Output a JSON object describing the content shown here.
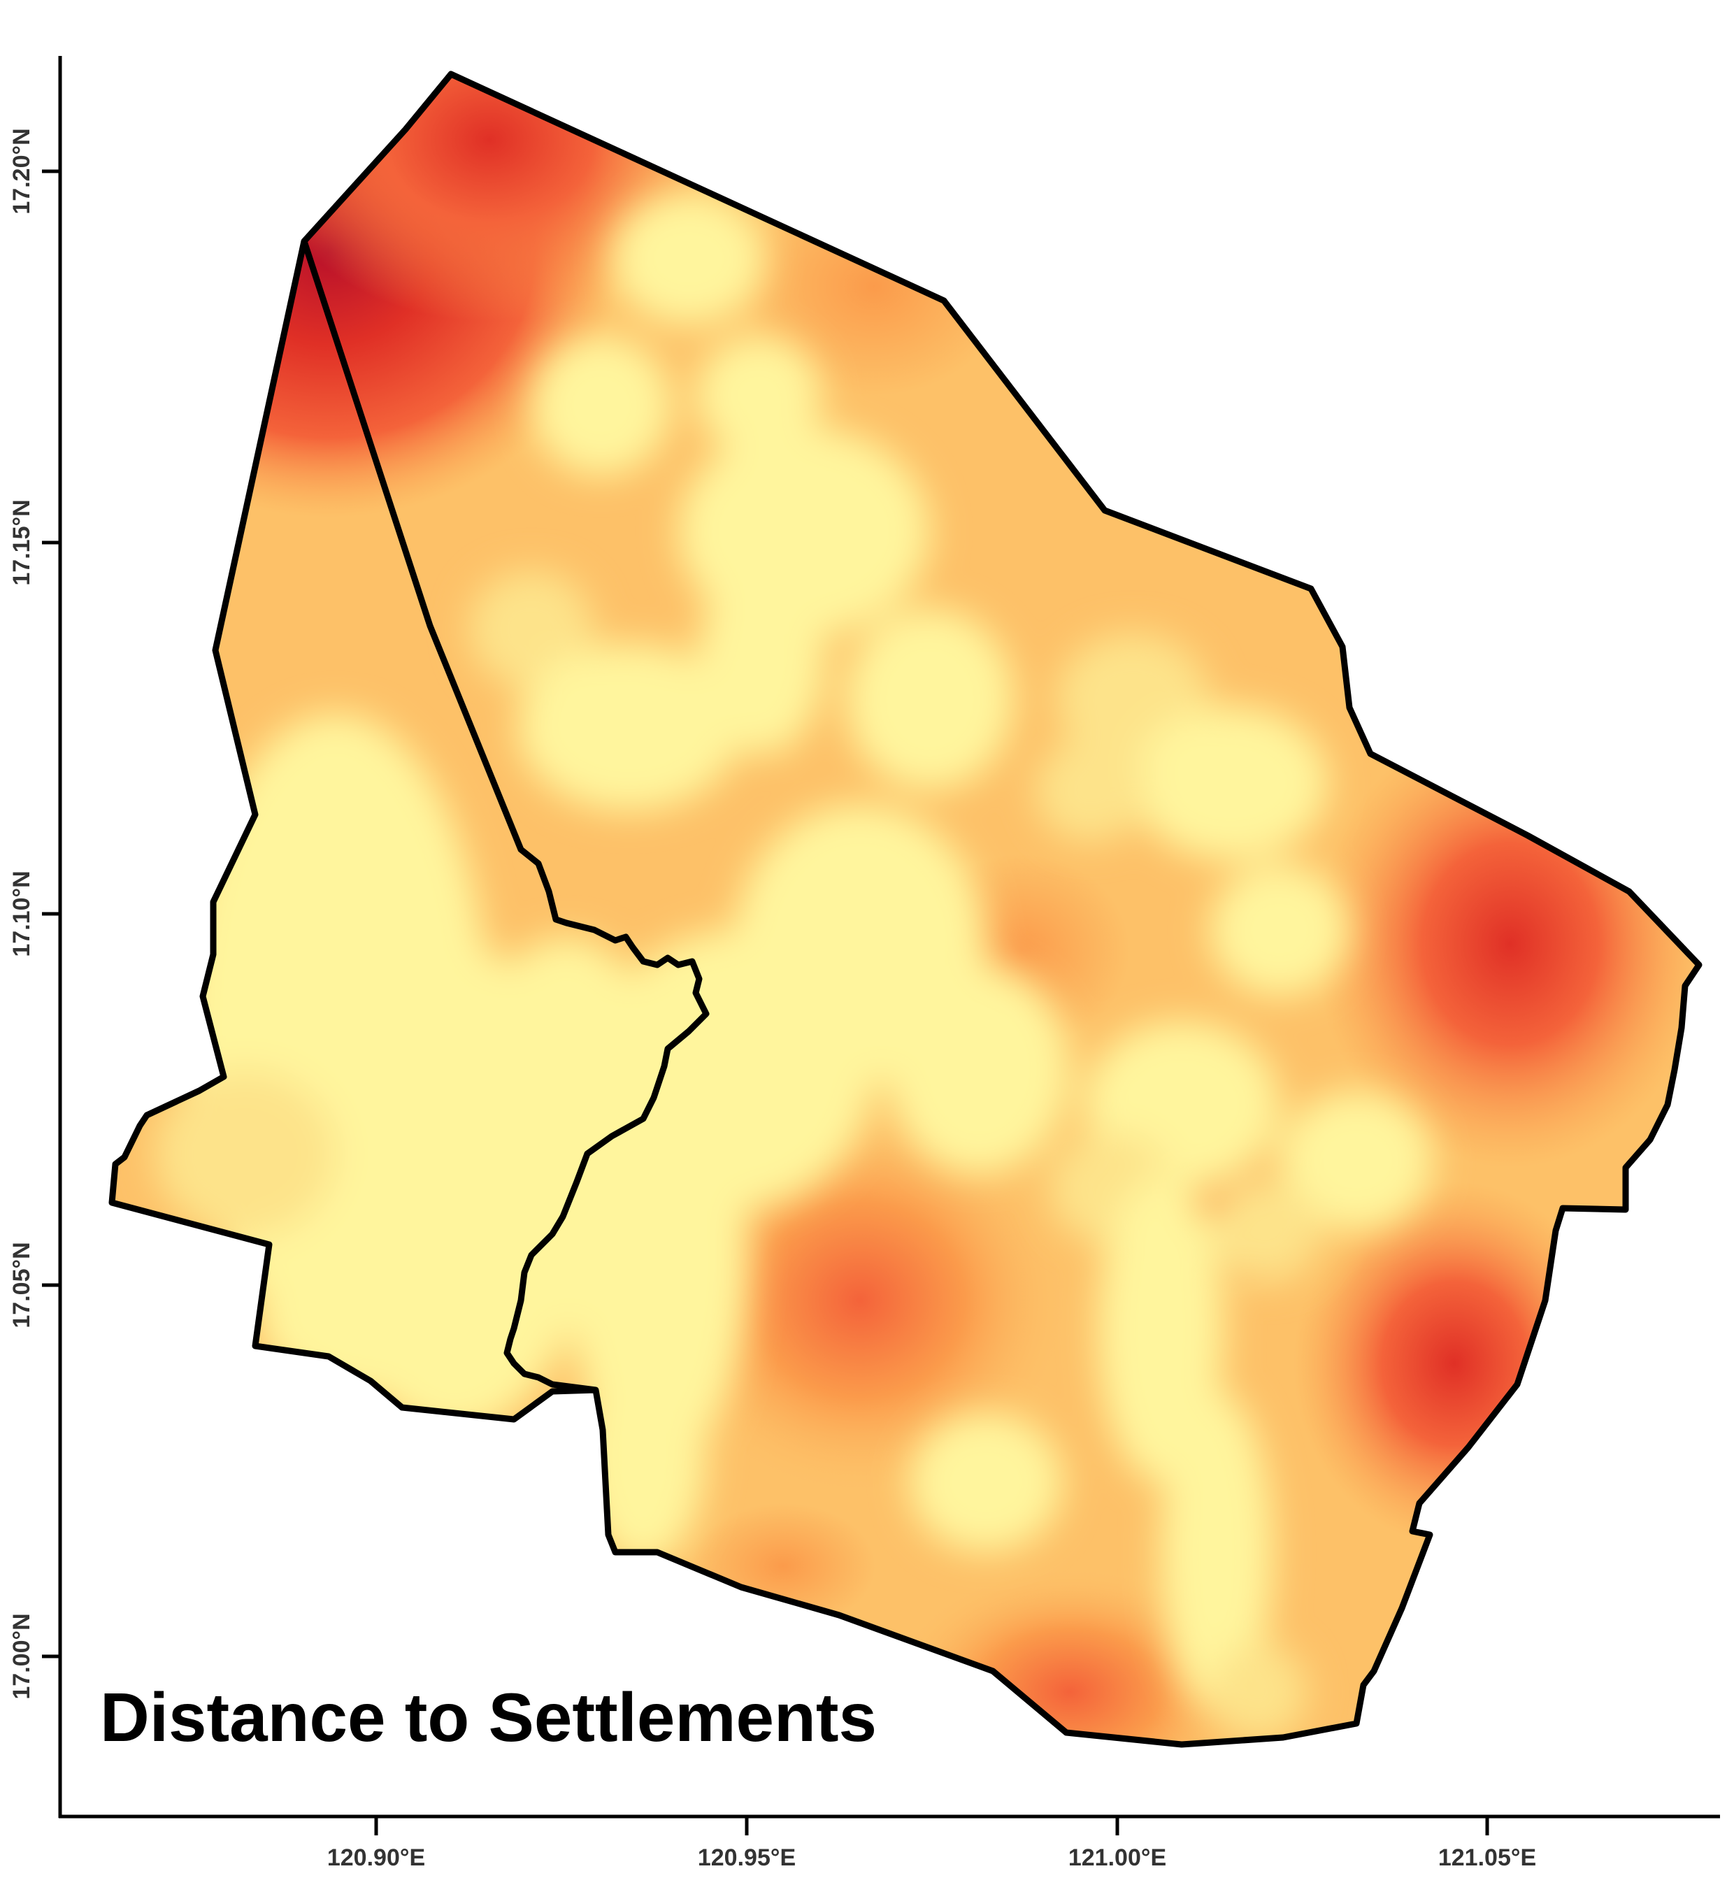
{
  "map": {
    "title": "Distance to Settlements",
    "x_ticks": [
      "120.90°E",
      "120.95°E",
      "121.00°E",
      "121.05°E"
    ],
    "y_ticks": [
      "17.20°N",
      "17.15°N",
      "17.10°N",
      "17.05°N",
      "17.00°N"
    ],
    "color_ramp": [
      "#fff59d",
      "#fde38a",
      "#fdc168",
      "#fb9b4b",
      "#f4633a",
      "#e03026",
      "#b8102a"
    ]
  }
}
